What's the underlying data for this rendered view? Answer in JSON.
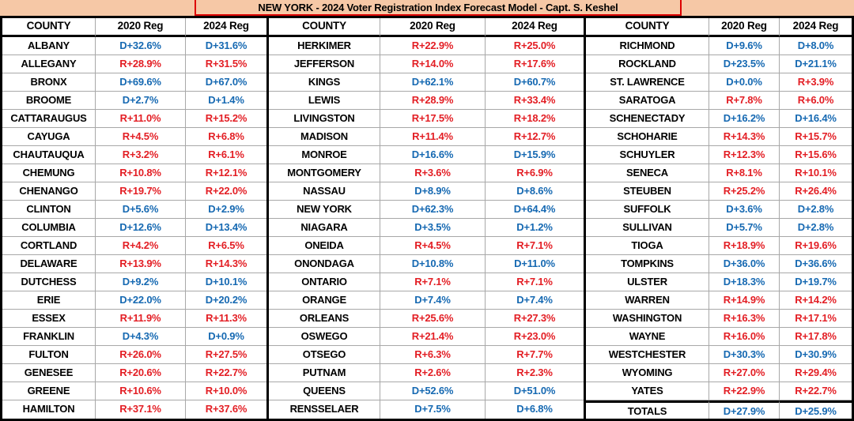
{
  "title": "NEW YORK -  2024 Voter Registration Index Forecast Model - Capt. S. Keshel",
  "columns": [
    "COUNTY",
    "2020 Reg",
    "2024 Reg"
  ],
  "colors": {
    "dem": "#1669b2",
    "rep": "#e31e24",
    "title_bg": "#f6c8a6",
    "title_border": "#dd0000",
    "grid_line": "#a8a8a8",
    "heavy_border": "#000000"
  },
  "chart_data": {
    "type": "table",
    "title": "NEW YORK - 2024 Voter Registration Index Forecast Model - Capt. S. Keshel",
    "columns": [
      "COUNTY",
      "2020 Reg",
      "2024 Reg"
    ]
  },
  "groups": [
    [
      [
        "ALBANY",
        "D+32.6%",
        "D+31.6%"
      ],
      [
        "ALLEGANY",
        "R+28.9%",
        "R+31.5%"
      ],
      [
        "BRONX",
        "D+69.6%",
        "D+67.0%"
      ],
      [
        "BROOME",
        "D+2.7%",
        "D+1.4%"
      ],
      [
        "CATTARAUGUS",
        "R+11.0%",
        "R+15.2%"
      ],
      [
        "CAYUGA",
        "R+4.5%",
        "R+6.8%"
      ],
      [
        "CHAUTAUQUA",
        "R+3.2%",
        "R+6.1%"
      ],
      [
        "CHEMUNG",
        "R+10.8%",
        "R+12.1%"
      ],
      [
        "CHENANGO",
        "R+19.7%",
        "R+22.0%"
      ],
      [
        "CLINTON",
        "D+5.6%",
        "D+2.9%"
      ],
      [
        "COLUMBIA",
        "D+12.6%",
        "D+13.4%"
      ],
      [
        "CORTLAND",
        "R+4.2%",
        "R+6.5%"
      ],
      [
        "DELAWARE",
        "R+13.9%",
        "R+14.3%"
      ],
      [
        "DUTCHESS",
        "D+9.2%",
        "D+10.1%"
      ],
      [
        "ERIE",
        "D+22.0%",
        "D+20.2%"
      ],
      [
        "ESSEX",
        "R+11.9%",
        "R+11.3%"
      ],
      [
        "FRANKLIN",
        "D+4.3%",
        "D+0.9%"
      ],
      [
        "FULTON",
        "R+26.0%",
        "R+27.5%"
      ],
      [
        "GENESEE",
        "R+20.6%",
        "R+22.7%"
      ],
      [
        "GREENE",
        "R+10.6%",
        "R+10.0%"
      ],
      [
        "HAMILTON",
        "R+37.1%",
        "R+37.6%"
      ]
    ],
    [
      [
        "HERKIMER",
        "R+22.9%",
        "R+25.0%"
      ],
      [
        "JEFFERSON",
        "R+14.0%",
        "R+17.6%"
      ],
      [
        "KINGS",
        "D+62.1%",
        "D+60.7%"
      ],
      [
        "LEWIS",
        "R+28.9%",
        "R+33.4%"
      ],
      [
        "LIVINGSTON",
        "R+17.5%",
        "R+18.2%"
      ],
      [
        "MADISON",
        "R+11.4%",
        "R+12.7%"
      ],
      [
        "MONROE",
        "D+16.6%",
        "D+15.9%"
      ],
      [
        "MONTGOMERY",
        "R+3.6%",
        "R+6.9%"
      ],
      [
        "NASSAU",
        "D+8.9%",
        "D+8.6%"
      ],
      [
        "NEW YORK",
        "D+62.3%",
        "D+64.4%"
      ],
      [
        "NIAGARA",
        "D+3.5%",
        "D+1.2%"
      ],
      [
        "ONEIDA",
        "R+4.5%",
        "R+7.1%"
      ],
      [
        "ONONDAGA",
        "D+10.8%",
        "D+11.0%"
      ],
      [
        "ONTARIO",
        "R+7.1%",
        "R+7.1%"
      ],
      [
        "ORANGE",
        "D+7.4%",
        "D+7.4%"
      ],
      [
        "ORLEANS",
        "R+25.6%",
        "R+27.3%"
      ],
      [
        "OSWEGO",
        "R+21.4%",
        "R+23.0%"
      ],
      [
        "OTSEGO",
        "R+6.3%",
        "R+7.7%"
      ],
      [
        "PUTNAM",
        "R+2.6%",
        "R+2.3%"
      ],
      [
        "QUEENS",
        "D+52.6%",
        "D+51.0%"
      ],
      [
        "RENSSELAER",
        "D+7.5%",
        "D+6.8%"
      ]
    ],
    [
      [
        "RICHMOND",
        "D+9.6%",
        "D+8.0%"
      ],
      [
        "ROCKLAND",
        "D+23.5%",
        "D+21.1%"
      ],
      [
        "ST. LAWRENCE",
        "D+0.0%",
        "R+3.9%"
      ],
      [
        "SARATOGA",
        "R+7.8%",
        "R+6.0%"
      ],
      [
        "SCHENECTADY",
        "D+16.2%",
        "D+16.4%"
      ],
      [
        "SCHOHARIE",
        "R+14.3%",
        "R+15.7%"
      ],
      [
        "SCHUYLER",
        "R+12.3%",
        "R+15.6%"
      ],
      [
        "SENECA",
        "R+8.1%",
        "R+10.1%"
      ],
      [
        "STEUBEN",
        "R+25.2%",
        "R+26.4%"
      ],
      [
        "SUFFOLK",
        "D+3.6%",
        "D+2.8%"
      ],
      [
        "SULLIVAN",
        "D+5.7%",
        "D+2.8%"
      ],
      [
        "TIOGA",
        "R+18.9%",
        "R+19.6%"
      ],
      [
        "TOMPKINS",
        "D+36.0%",
        "D+36.6%"
      ],
      [
        "ULSTER",
        "D+18.3%",
        "D+19.7%"
      ],
      [
        "WARREN",
        "R+14.9%",
        "R+14.2%"
      ],
      [
        "WASHINGTON",
        "R+16.3%",
        "R+17.1%"
      ],
      [
        "WAYNE",
        "R+16.0%",
        "R+17.8%"
      ],
      [
        "WESTCHESTER",
        "D+30.3%",
        "D+30.9%"
      ],
      [
        "WYOMING",
        "R+27.0%",
        "R+29.4%"
      ],
      [
        "YATES",
        "R+22.9%",
        "R+22.7%"
      ]
    ]
  ],
  "totals": [
    "TOTALS",
    "D+27.9%",
    "D+25.9%"
  ]
}
